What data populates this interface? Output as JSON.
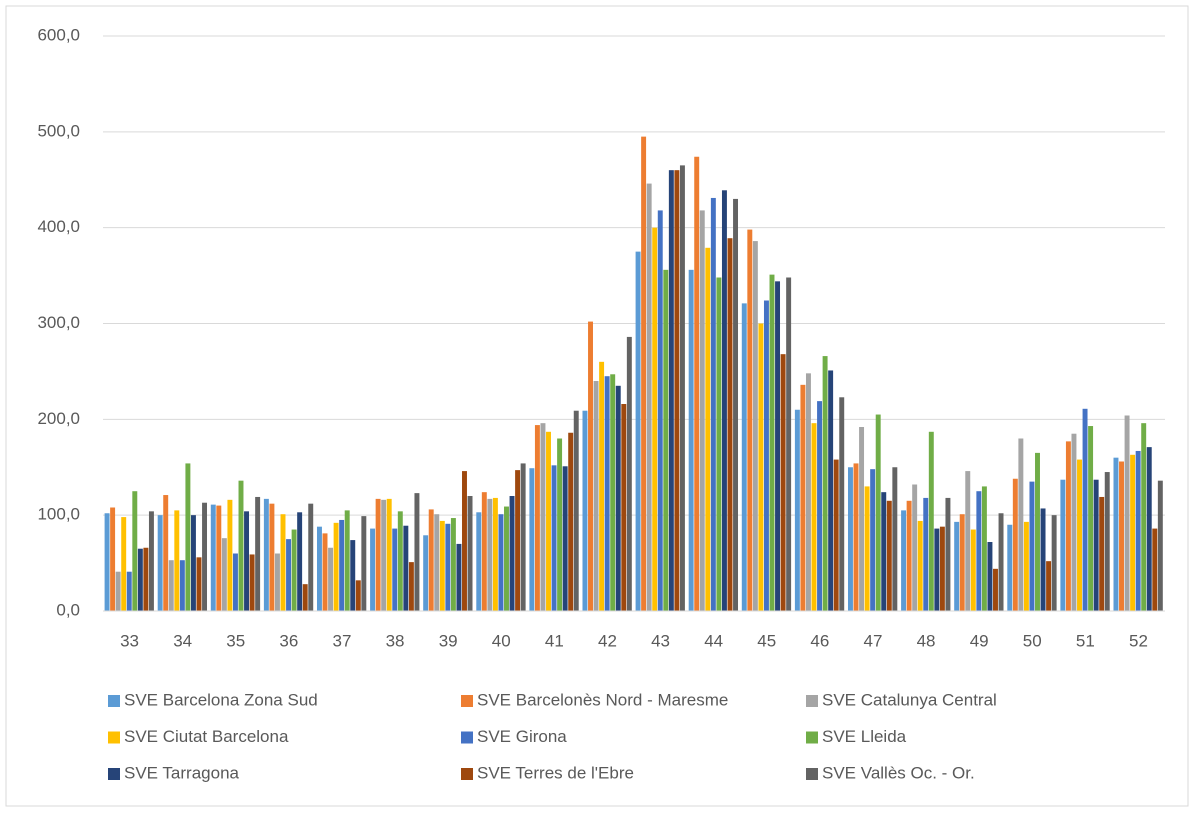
{
  "chart_data": {
    "type": "bar",
    "categories": [
      "33",
      "34",
      "35",
      "36",
      "37",
      "38",
      "39",
      "40",
      "41",
      "42",
      "43",
      "44",
      "45",
      "46",
      "47",
      "48",
      "49",
      "50",
      "51",
      "52"
    ],
    "series": [
      {
        "name": "SVE  Barcelona Zona Sud",
        "color": "#5b9bd5",
        "values": [
          102,
          100,
          111,
          117,
          88,
          86,
          79,
          103,
          149,
          209,
          375,
          356,
          321,
          210,
          150,
          105,
          93,
          90,
          137,
          160
        ]
      },
      {
        "name": "SVE Barcelonès Nord - Maresme",
        "color": "#ed7d31",
        "values": [
          108,
          121,
          110,
          112,
          81,
          117,
          106,
          124,
          194,
          302,
          495,
          474,
          398,
          236,
          154,
          115,
          101,
          138,
          177,
          156
        ]
      },
      {
        "name": "SVE Catalunya Central",
        "color": "#a5a5a5",
        "values": [
          41,
          53,
          76,
          60,
          66,
          116,
          101,
          117,
          196,
          240,
          446,
          418,
          386,
          248,
          192,
          132,
          146,
          180,
          185,
          204
        ]
      },
      {
        "name": "SVE Ciutat Barcelona",
        "color": "#ffc000",
        "values": [
          98,
          105,
          116,
          101,
          92,
          117,
          94,
          118,
          187,
          260,
          400,
          379,
          300,
          196,
          130,
          94,
          85,
          93,
          158,
          163
        ]
      },
      {
        "name": "SVE Girona",
        "color": "#4472c4",
        "values": [
          41,
          53,
          60,
          75,
          95,
          86,
          91,
          101,
          152,
          245,
          418,
          431,
          324,
          219,
          148,
          118,
          125,
          135,
          211,
          167
        ]
      },
      {
        "name": "SVE Lleida",
        "color": "#70ad47",
        "values": [
          125,
          154,
          136,
          85,
          105,
          104,
          97,
          109,
          180,
          247,
          356,
          348,
          351,
          266,
          205,
          187,
          130,
          165,
          193,
          196
        ]
      },
      {
        "name": "SVE Tarragona",
        "color": "#264478",
        "values": [
          65,
          100,
          104,
          103,
          74,
          89,
          70,
          120,
          151,
          235,
          460,
          439,
          344,
          251,
          124,
          86,
          72,
          107,
          137,
          171
        ]
      },
      {
        "name": "SVE Terres de l'Ebre",
        "color": "#9e480e",
        "values": [
          66,
          56,
          59,
          28,
          32,
          51,
          146,
          147,
          186,
          216,
          460,
          389,
          268,
          158,
          115,
          88,
          44,
          52,
          119,
          86
        ]
      },
      {
        "name": "SVE Vallès Oc. - Or.",
        "color": "#636363",
        "values": [
          104,
          113,
          119,
          112,
          99,
          123,
          120,
          154,
          209,
          286,
          465,
          430,
          348,
          223,
          150,
          118,
          102,
          100,
          145,
          136
        ]
      }
    ],
    "ylim": [
      0,
      600
    ],
    "yticks": [
      {
        "value": 0,
        "label": "0,0"
      },
      {
        "value": 100,
        "label": "100,0"
      },
      {
        "value": 200,
        "label": "200,0"
      },
      {
        "value": 300,
        "label": "300,0"
      },
      {
        "value": 400,
        "label": "400,0"
      },
      {
        "value": 500,
        "label": "500,0"
      },
      {
        "value": 600,
        "label": "600,0"
      }
    ],
    "grid": true,
    "legend": "bottom"
  }
}
